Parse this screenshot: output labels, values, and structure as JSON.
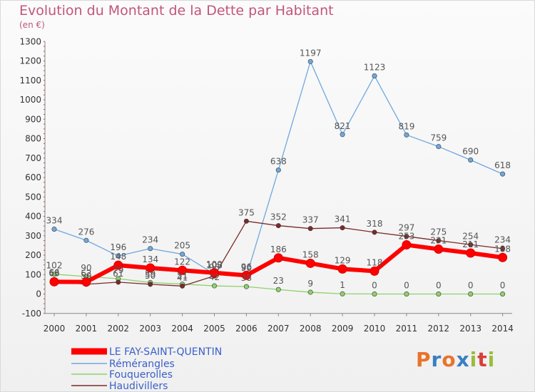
{
  "header": {
    "title": "Evolution du Montant de la Dette par Habitant",
    "subtitle": "(en €)"
  },
  "brand": {
    "text": "Proxiti",
    "colors": [
      "#e8742a",
      "#3a7fc1",
      "#e8742a",
      "#3a7fc1",
      "#9bbd3a",
      "#d9403a",
      "#9bbd3a"
    ]
  },
  "chart_data": {
    "type": "line",
    "title": "Evolution du Montant de la Dette par Habitant",
    "subtitle": "(en €)",
    "x": [
      "2000",
      "2001",
      "2002",
      "2003",
      "2004",
      "2005",
      "2006",
      "2007",
      "2008",
      "2009",
      "2010",
      "2011",
      "2012",
      "2013",
      "2014"
    ],
    "ylim": [
      -100,
      1300
    ],
    "yticks": [
      -100,
      0,
      100,
      200,
      300,
      400,
      500,
      600,
      700,
      800,
      900,
      1000,
      1100,
      1200,
      1300
    ],
    "grid": false,
    "legend_position": "bottom-left",
    "series": [
      {
        "name": "LE FAY-SAINT-QUENTIN",
        "color": "#ff0000",
        "width": 6,
        "values": [
          63,
          62,
          148,
          134,
          122,
          109,
          96,
          186,
          158,
          129,
          118,
          253,
          231,
          211,
          188
        ],
        "labels": [
          "63",
          "62",
          "148",
          "134",
          "122",
          "109",
          "96",
          "186",
          "158",
          "129",
          "118",
          "253",
          "231",
          "211",
          "188"
        ]
      },
      {
        "name": "Rémérangles",
        "color": "#6fa8dc",
        "width": 1.3,
        "values": [
          334,
          276,
          196,
          234,
          205,
          103,
          90,
          638,
          1197,
          821,
          1123,
          819,
          759,
          690,
          618
        ],
        "labels": [
          "334",
          "276",
          "196",
          "234",
          "205",
          "103",
          "90",
          "638",
          "1197",
          "821",
          "1123",
          "819",
          "759",
          "690",
          "618"
        ]
      },
      {
        "name": "Fouquerolles",
        "color": "#8fd16a",
        "width": 1.3,
        "values": [
          102,
          90,
          79,
          59,
          51,
          42,
          38,
          23,
          9,
          1,
          0,
          0,
          0,
          0,
          0
        ],
        "labels": [
          "102",
          "90",
          "79",
          "59",
          "51",
          "42",
          "38",
          "23",
          "9",
          "1",
          "0",
          "0",
          "0",
          "0",
          "0"
        ]
      },
      {
        "name": "Haudivillers",
        "color": "#7b2a2a",
        "width": 1.3,
        "values": [
          66,
          50,
          61,
          50,
          41,
          93,
          375,
          352,
          337,
          341,
          318,
          297,
          275,
          254,
          234
        ],
        "labels": [
          "66",
          "50",
          "61",
          "50",
          "41",
          "93",
          "375",
          "352",
          "337",
          "341",
          "318",
          "297",
          "275",
          "254",
          "234"
        ]
      }
    ]
  }
}
